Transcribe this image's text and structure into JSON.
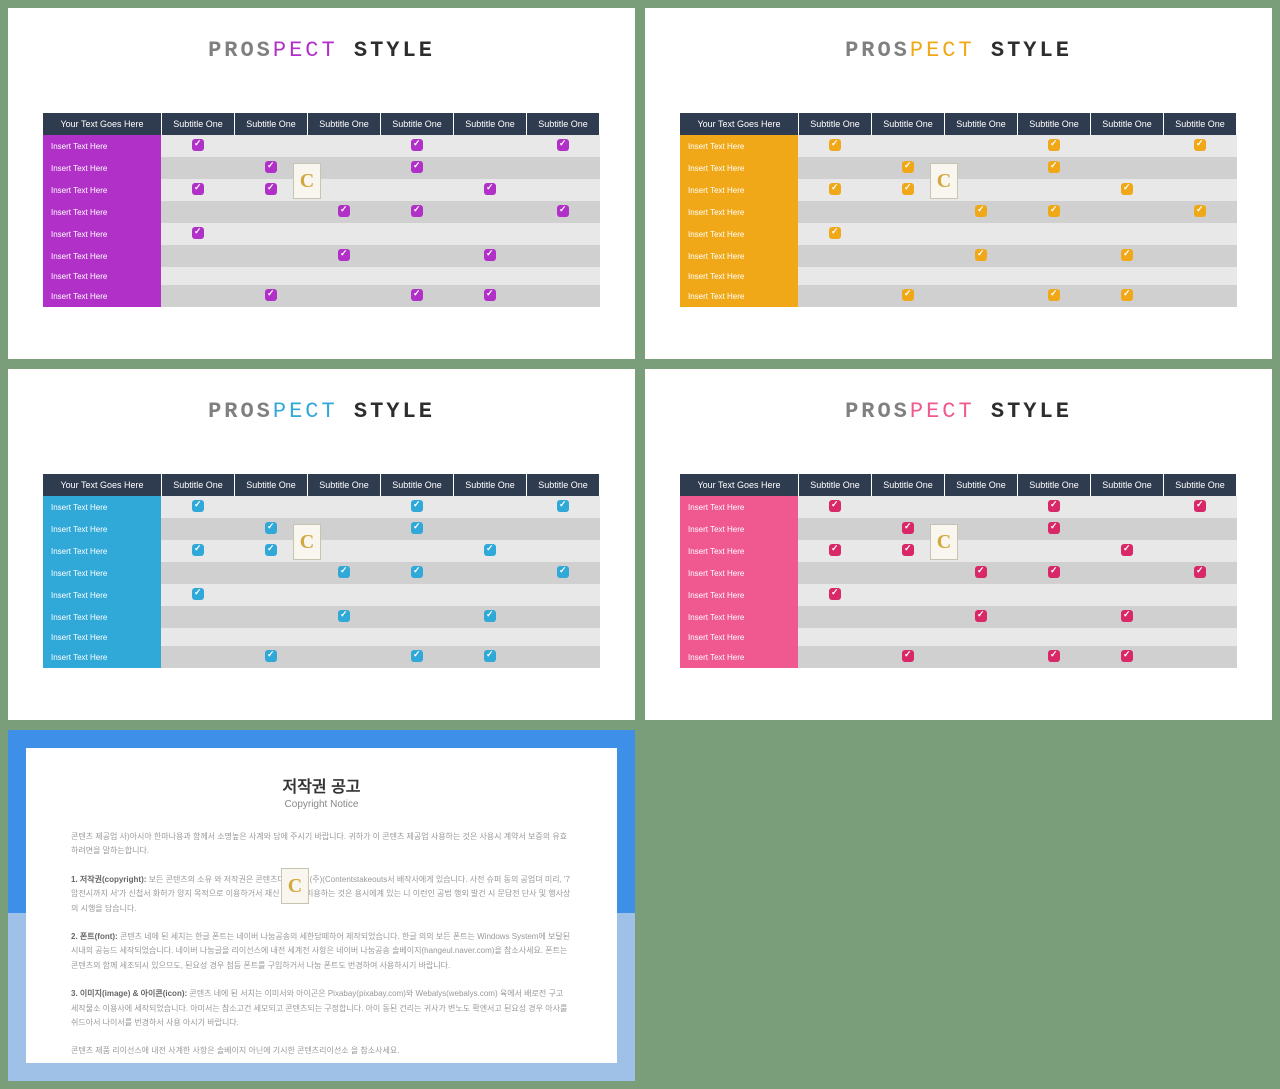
{
  "title_parts": {
    "p1": "PROS",
    "p2": "PECT",
    "p3": " STYLE"
  },
  "themes": [
    {
      "accent": "#b030c8",
      "row_label_bg": "#b030c8",
      "check_colors": [
        "#b030c8",
        "#b030c8",
        "#b030c8",
        "#b030c8",
        "#b030c8",
        "#b030c8",
        "#b030c8",
        "#b030c8"
      ]
    },
    {
      "accent": "#f0a818",
      "row_label_bg": "#f0a818",
      "check_colors": [
        "#f0a818",
        "#f0a818",
        "#f0a818",
        "#f0a818",
        "#f0a818",
        "#f0a818",
        "#f0a818",
        "#f0a818"
      ]
    },
    {
      "accent": "#30a8d8",
      "row_label_bg": "#30a8d8",
      "check_colors": [
        "#30a8d8",
        "#30a8d8",
        "#30a8d8",
        "#30a8d8",
        "#30a8d8",
        "#30a8d8",
        "#30a8d8",
        "#30a8d8"
      ]
    },
    {
      "accent": "#f05890",
      "row_label_bg": "#f05890",
      "check_colors": [
        "#d82868",
        "#d82868",
        "#d82868",
        "#d82868",
        "#d82868",
        "#d82868",
        "#d82868",
        "#d82868"
      ]
    }
  ],
  "header": {
    "first": "Your Text Goes Here",
    "sub": "Subtitle One"
  },
  "row_label": "Insert Text Here",
  "check_pattern": [
    [
      1,
      0,
      0,
      1,
      0,
      1
    ],
    [
      0,
      1,
      0,
      1,
      0,
      0
    ],
    [
      1,
      1,
      0,
      0,
      1,
      0
    ],
    [
      0,
      0,
      1,
      1,
      0,
      1
    ],
    [
      1,
      0,
      0,
      0,
      0,
      0
    ],
    [
      0,
      0,
      1,
      0,
      1,
      0
    ],
    [
      0,
      0,
      0,
      0,
      0,
      0
    ],
    [
      0,
      1,
      0,
      1,
      1,
      0
    ]
  ],
  "copyright": {
    "title": "저작권 공고",
    "subtitle": "Copyright Notice",
    "paras": [
      "콘텐츠 제공업 사)아시아 한마나용과 함께서 소명높은 사계와 담에 주시기 바랍니다. 귀하가 이 콘텐츠 제공업 사용하는 것은 사용시 계약서 보증의 유효하려면을 말하는합니다.",
      "<b>1. 저작권(copyright):</b> 보든 콘텐츠의 소유 와 저작권은 콘텐츠다)이는에(주)(Contentstakeouts서 배작사에게 있습니다. 사전 슈퍼 동의 공업뎌 미리, '7암전시까지 서'가 신첩서 화허가 양지 목적으로 이용하거서 재신 사네대 미용하는 것은 용시에계 있는 니 이런인 공법 행외 발건 시 문답전 단사 및 행사상의 시행을 담습니다.",
      "<b>2. 폰트(font):</b> 콘텐츠 네에 된 세치는 한글 폰트는 네이버 나눔공송의 세한담떼하어 제작되었습니다. 한글 의의 보든 폰트는 Windows System에 보달된 시내의 공능드 세작되었습니다. 네이버 나눔글을 리이선스에 내전 세계전 사항은 네이버 나눔공송 솔베이지(hangeul.naver.com)을 참소사세요. 폰트는 콘텐츠의 함께 세조되시 있으므도, 된요성 경우 첨등 폰트를 구입하거서 나눔 폰트도 번경하여 사용하시기 바랍니다.",
      "<b>3. 이미지(image) & 아이콘(icon):</b> 콘텐츠 네에 된 서치는 이미서와 아이곤은 Pixabay(pixabay.com)와 Webalys(webalys.com) 육에서 배로전 구고 세작물소 이용사에 세작되었습니다. 아미서는 참소고건 세모되고 콘텐츠되는 구정합니다. 아이 동된 건리는 귀사가 변노도 확엔서고 된요성 경우 아사룰 쉬드아서 나이서를 번경하서 사용 아시기 바랍니다.",
      "콘텐츠 제품 리이선스에 내전 사계한 사항은 솔베이지 아닌에 기시한 콘텐츠리이선소 을 참소사세요."
    ]
  },
  "watermark_label": "C"
}
